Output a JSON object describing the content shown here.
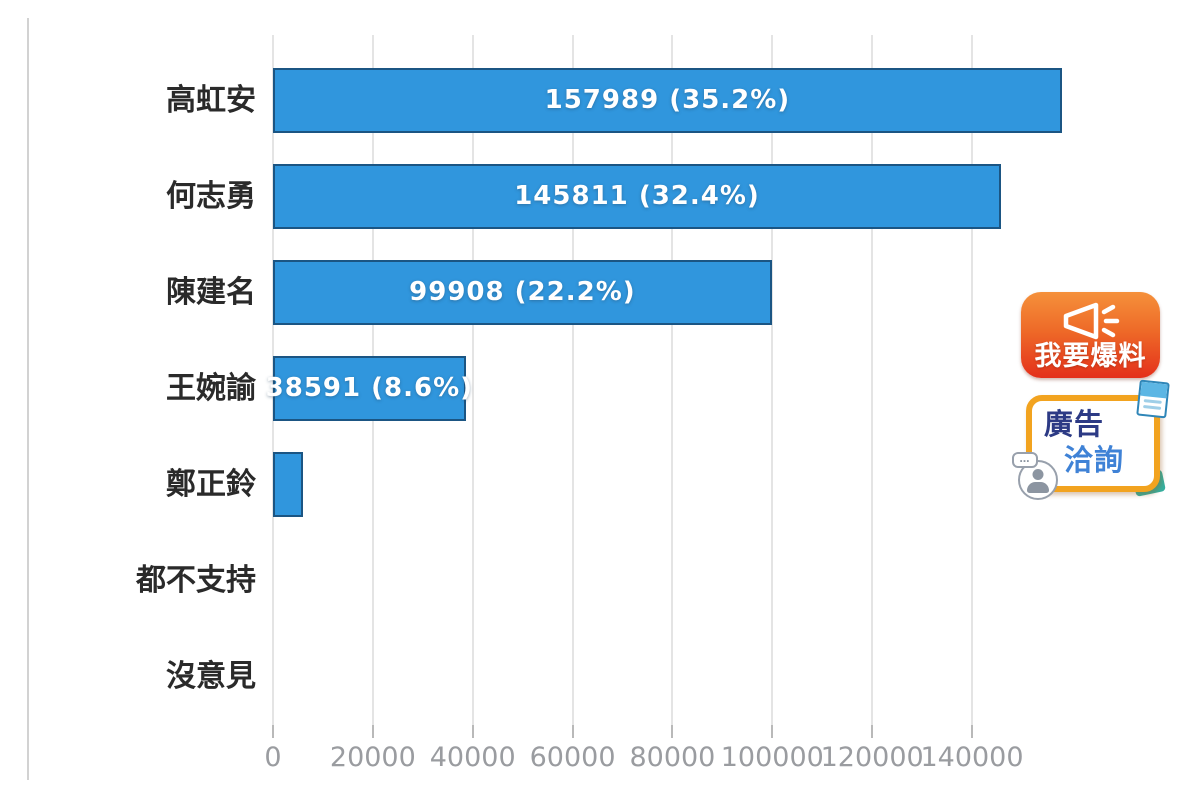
{
  "page": {
    "background": "#ffffff"
  },
  "chart_data": {
    "type": "bar",
    "orientation": "horizontal",
    "title": "",
    "xlabel": "",
    "ylabel": "",
    "categories": [
      "高虹安",
      "何志勇",
      "陳建名",
      "王婉諭",
      "鄭正鈴",
      "都不支持",
      "沒意見"
    ],
    "values": [
      157989,
      145811,
      99908,
      38591,
      6000,
      0,
      0
    ],
    "estimated": [
      false,
      false,
      false,
      false,
      true,
      true,
      true
    ],
    "percentages": [
      35.2,
      32.4,
      22.2,
      8.6,
      null,
      null,
      null
    ],
    "value_labels": [
      "157989 (35.2%)",
      "145811 (32.4%)",
      "99908 (22.2%)",
      "38591 (8.6%)",
      "",
      "",
      ""
    ],
    "x_ticks": [
      0,
      20000,
      40000,
      60000,
      80000,
      100000,
      120000,
      140000
    ],
    "x_tick_labels": [
      "0",
      "20000",
      "40000",
      "60000",
      "80000",
      "100000",
      "120000",
      "140000"
    ],
    "xlim": [
      0,
      160000
    ],
    "grid": true,
    "legend": "none",
    "colors": {
      "bar_fill": "#3096dd",
      "bar_border": "#174a73",
      "value_label": "#ffffff",
      "category_label": "#2a2a2a",
      "tick_label": "#9a9ca0",
      "gridline": "#e4e4e4"
    }
  },
  "badges": {
    "report": {
      "label": "我要爆料",
      "icon": "megaphone-icon",
      "bg_top": "#f5913b",
      "bg_bottom": "#e4301b",
      "text_color": "#ffffff"
    },
    "ad_inquiry": {
      "line1": "廣告",
      "line2": "洽詢",
      "border_color": "#f2a31f",
      "line1_color": "#2c3a85",
      "line2_color": "#3f82d6",
      "bubble_dots": "…",
      "icons": [
        "document-icon",
        "person-icon"
      ]
    }
  }
}
